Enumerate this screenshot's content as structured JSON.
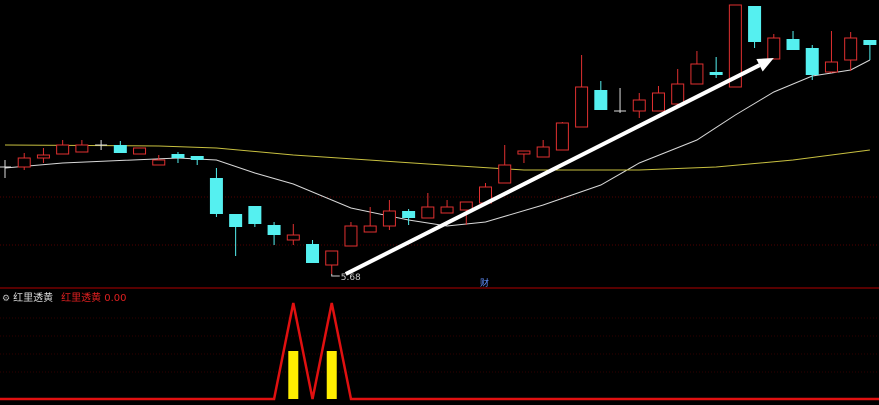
{
  "colors": {
    "up": "#e03030",
    "down": "#55f0f0",
    "doji": "#dddddd",
    "ma_short": "#d8d8d8",
    "ma_long": "#c8c040",
    "arrow": "#ffffff",
    "indicator_line": "#e01010",
    "indicator_bar": "#ffee00",
    "separator": "#b00000",
    "grid": "#500000"
  },
  "indicator": {
    "name": "红里透黄",
    "value_label": "红里透黄",
    "value": "0.00",
    "icon": "gear-icon"
  },
  "annotations": {
    "low_label": "5.68",
    "finance_badge": "财"
  },
  "chart_data": [
    {
      "type": "candlestick",
      "fields": [
        "open",
        "high",
        "low",
        "close"
      ],
      "candles": [
        [
          6.75,
          6.82,
          6.64,
          6.75
        ],
        [
          6.75,
          6.89,
          6.72,
          6.84
        ],
        [
          6.84,
          6.94,
          6.79,
          6.87
        ],
        [
          6.88,
          7.02,
          6.88,
          6.97
        ],
        [
          6.9,
          7.02,
          6.9,
          6.97
        ],
        [
          6.97,
          7.02,
          6.92,
          6.97
        ],
        [
          6.97,
          7.01,
          6.89,
          6.89
        ],
        [
          6.88,
          6.94,
          6.88,
          6.94
        ],
        [
          6.77,
          6.87,
          6.77,
          6.82
        ],
        [
          6.88,
          6.9,
          6.79,
          6.84
        ],
        [
          6.86,
          6.86,
          6.77,
          6.82
        ],
        [
          6.64,
          6.74,
          6.25,
          6.28
        ],
        [
          6.28,
          6.28,
          5.86,
          6.15
        ],
        [
          6.36,
          6.36,
          6.15,
          6.18
        ],
        [
          6.17,
          6.2,
          5.97,
          6.07
        ],
        [
          6.02,
          6.18,
          5.97,
          6.07
        ],
        [
          5.98,
          6.02,
          5.79,
          5.79
        ],
        [
          5.77,
          5.91,
          5.68,
          5.91
        ],
        [
          5.96,
          6.2,
          5.96,
          6.16
        ],
        [
          6.1,
          6.35,
          6.1,
          6.16
        ],
        [
          6.16,
          6.42,
          6.12,
          6.31
        ],
        [
          6.31,
          6.33,
          6.17,
          6.24
        ],
        [
          6.24,
          6.49,
          6.24,
          6.35
        ],
        [
          6.29,
          6.42,
          6.29,
          6.35
        ],
        [
          6.32,
          6.4,
          6.17,
          6.4
        ],
        [
          6.39,
          6.59,
          6.39,
          6.55
        ],
        [
          6.59,
          6.97,
          6.59,
          6.77
        ],
        [
          6.88,
          6.91,
          6.79,
          6.91
        ],
        [
          6.85,
          7.02,
          6.85,
          6.95
        ],
        [
          6.92,
          7.2,
          6.92,
          7.19
        ],
        [
          7.15,
          7.87,
          7.15,
          7.55
        ],
        [
          7.52,
          7.61,
          7.32,
          7.32
        ],
        [
          7.31,
          7.54,
          7.29,
          7.31
        ],
        [
          7.31,
          7.49,
          7.24,
          7.42
        ],
        [
          7.31,
          7.56,
          7.31,
          7.49
        ],
        [
          7.38,
          7.73,
          7.38,
          7.58
        ],
        [
          7.58,
          7.91,
          7.58,
          7.78
        ],
        [
          7.7,
          7.85,
          7.64,
          7.67
        ],
        [
          7.55,
          8.37,
          7.55,
          8.37
        ],
        [
          8.36,
          8.36,
          7.94,
          8.0
        ],
        [
          7.83,
          8.08,
          7.83,
          8.04
        ],
        [
          8.03,
          8.11,
          7.92,
          7.92
        ],
        [
          7.94,
          7.97,
          7.62,
          7.67
        ],
        [
          7.7,
          8.11,
          7.69,
          7.8
        ],
        [
          7.82,
          8.1,
          7.71,
          8.04
        ],
        [
          8.02,
          8.02,
          7.82,
          7.97
        ]
      ],
      "moving_averages": [
        {
          "points": [
            [
              0,
              6.74
            ],
            [
              3,
              6.79
            ],
            [
              9,
              6.84
            ],
            [
              11,
              6.82
            ],
            [
              13,
              6.69
            ],
            [
              15,
              6.58
            ],
            [
              18,
              6.34
            ],
            [
              21,
              6.22
            ],
            [
              23,
              6.16
            ],
            [
              25,
              6.2
            ],
            [
              28,
              6.37
            ],
            [
              31,
              6.57
            ],
            [
              33,
              6.79
            ],
            [
              36,
              7.02
            ],
            [
              38,
              7.27
            ],
            [
              40,
              7.5
            ],
            [
              42,
              7.66
            ],
            [
              44,
              7.72
            ],
            [
              45,
              7.82
            ]
          ]
        },
        {
          "points": [
            [
              0,
              6.97
            ],
            [
              8,
              6.96
            ],
            [
              11,
              6.94
            ],
            [
              15,
              6.87
            ],
            [
              22,
              6.78
            ],
            [
              27,
              6.72
            ],
            [
              33,
              6.72
            ],
            [
              37,
              6.75
            ],
            [
              41,
              6.82
            ],
            [
              45,
              6.92
            ]
          ]
        }
      ],
      "arrow": {
        "from": [
          17,
          5.68
        ],
        "to": [
          40,
          7.84
        ]
      },
      "low_marker": {
        "index": 17,
        "price": 5.68
      },
      "grid": true
    },
    {
      "type": "line+bar",
      "line_values": {
        "15": 1,
        "17": 1
      },
      "bar_values": {
        "15": 0.5,
        "17": 0.5
      },
      "ylim": [
        0,
        1
      ]
    }
  ]
}
